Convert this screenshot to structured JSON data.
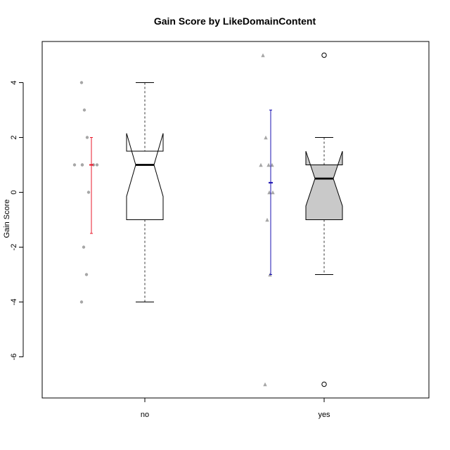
{
  "chart_data": {
    "type": "box",
    "title": "Gain Score by LikeDomainContent",
    "xlabel": "",
    "ylabel": "Gain Score",
    "ylim": [
      -7.5,
      5.5
    ],
    "yticks": [
      -6,
      -4,
      -2,
      0,
      2,
      4
    ],
    "ytick_labels": [
      "-6",
      "-4",
      "-2",
      "0",
      "2",
      "4"
    ],
    "categories": [
      "no",
      "yes"
    ],
    "groups": [
      {
        "name": "no",
        "box": {
          "whisker_low": -4,
          "q1": -1,
          "median": 1,
          "q3": 1.5,
          "whisker_high": 4,
          "notch_low": -0.15,
          "notch_high": 2.15,
          "fill": "#ffffff",
          "outliers": []
        },
        "points": [
          4,
          3,
          2,
          1,
          1,
          1,
          1,
          1,
          0,
          -2,
          -3,
          -4
        ],
        "point_marker": "circle",
        "interval": {
          "low": -1.5,
          "mid": 1,
          "high": 2,
          "color": "#e8182b"
        }
      },
      {
        "name": "yes",
        "box": {
          "whisker_low": -3,
          "q1": -1,
          "median": 0.5,
          "q3": 1,
          "whisker_high": 2,
          "notch_low": -0.5,
          "notch_high": 1.5,
          "fill": "#c9c9c9",
          "outliers": [
            5,
            -7
          ]
        },
        "points": [
          5,
          2,
          1,
          1,
          1,
          0,
          0,
          -1,
          -3,
          -7
        ],
        "point_marker": "triangle",
        "interval": {
          "low": -3,
          "mid": 0.35,
          "high": 3,
          "color": "#1a10b0"
        }
      }
    ],
    "grid": false,
    "legend": "none"
  }
}
